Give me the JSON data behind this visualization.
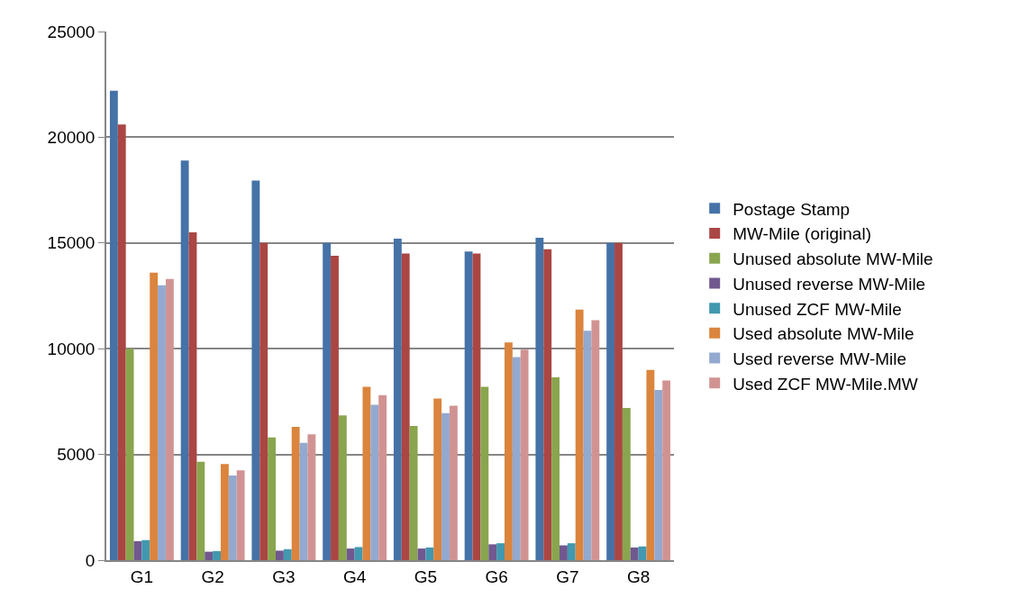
{
  "chart_data": {
    "type": "bar",
    "categories": [
      "G1",
      "G2",
      "G3",
      "G4",
      "G5",
      "G6",
      "G7",
      "G8"
    ],
    "ylim": [
      0,
      25000
    ],
    "yticks": [
      0,
      5000,
      10000,
      15000,
      20000,
      25000
    ],
    "grid": "y",
    "legend": "right",
    "series": [
      {
        "name": "Postage Stamp",
        "color": "#4572a7",
        "values": [
          22200,
          18900,
          17950,
          15000,
          15200,
          14600,
          15250,
          15000
        ]
      },
      {
        "name": "MW-Mile (original)",
        "color": "#aa4643",
        "values": [
          20600,
          15500,
          15000,
          14400,
          14500,
          14500,
          14700,
          15000
        ]
      },
      {
        "name": "Unused absolute MW-Mile",
        "color": "#89a54e",
        "values": [
          10000,
          4650,
          5800,
          6850,
          6350,
          8200,
          8650,
          7200
        ]
      },
      {
        "name": "Unused reverse MW-Mile",
        "color": "#71588f",
        "values": [
          900,
          400,
          450,
          550,
          550,
          750,
          700,
          600
        ]
      },
      {
        "name": "Unused ZCF MW-Mile",
        "color": "#4198af",
        "values": [
          950,
          430,
          520,
          620,
          600,
          800,
          800,
          650
        ]
      },
      {
        "name": "Used absolute MW-Mile",
        "color": "#db843d",
        "values": [
          13600,
          4550,
          6300,
          8200,
          7650,
          10300,
          11850,
          9000
        ]
      },
      {
        "name": "Used reverse MW-Mile",
        "color": "#93a9cf",
        "values": [
          13000,
          4000,
          5550,
          7350,
          6950,
          9600,
          10850,
          8050
        ]
      },
      {
        "name": "Used ZCF MW-Mile.MW",
        "color": "#d19392",
        "values": [
          13300,
          4250,
          5950,
          7800,
          7300,
          9950,
          11350,
          8500
        ]
      }
    ]
  }
}
